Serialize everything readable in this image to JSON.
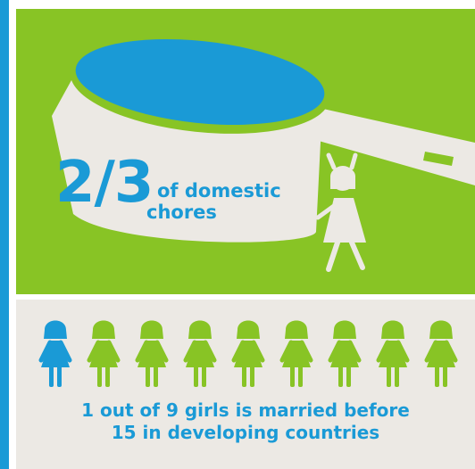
{
  "colors": {
    "green": "#88c425",
    "blue": "#1a9ad6",
    "cream": "#ece9e4",
    "figure_green": "#88c425",
    "figure_blue": "#1a9ad6"
  },
  "chores": {
    "fraction": "2/3",
    "caption_line1": "of domestic",
    "caption_line2": "chores"
  },
  "marriage": {
    "line1": "1 out of 9 girls is married before",
    "line2": "15 in developing countries",
    "girls": [
      {
        "color": "#1a9ad6",
        "highlighted": true
      },
      {
        "color": "#88c425",
        "highlighted": false
      },
      {
        "color": "#88c425",
        "highlighted": false
      },
      {
        "color": "#88c425",
        "highlighted": false
      },
      {
        "color": "#88c425",
        "highlighted": false
      },
      {
        "color": "#88c425",
        "highlighted": false
      },
      {
        "color": "#88c425",
        "highlighted": false
      },
      {
        "color": "#88c425",
        "highlighted": false
      },
      {
        "color": "#88c425",
        "highlighted": false
      }
    ]
  }
}
